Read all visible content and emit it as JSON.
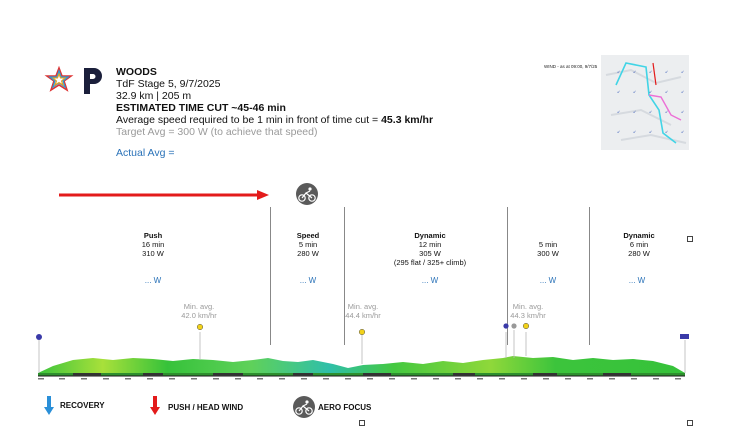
{
  "header": {
    "team": "WOODS",
    "stage": "TdF Stage 5, 9/7/2025",
    "distance_elev": "32.9 km | 205 m",
    "time_cut_label": "ESTIMATED TIME CUT ~45-46 min",
    "avg_speed_prefix": "Average speed required to be 1 min in front of time cut = ",
    "avg_speed_value": "45.3 km/hr",
    "target": "Target Avg = 300 W (to achieve that speed)",
    "actual": "Actual Avg ="
  },
  "wind_map": {
    "label": "WIND - as at 09:00, 9/7/25"
  },
  "segments": [
    {
      "title": "Push",
      "duration": "16 min",
      "power": "310 W",
      "note": "",
      "actual": "... W"
    },
    {
      "title": "Speed",
      "duration": "5 min",
      "power": "280 W",
      "note": "",
      "actual": "... W"
    },
    {
      "title": "Dynamic",
      "duration": "12 min",
      "power": "305 W",
      "note": "(295 flat / 325+ climb)",
      "actual": "... W"
    },
    {
      "title": "",
      "duration": "5 min",
      "power": "300 W",
      "note": "",
      "actual": "... W"
    },
    {
      "title": "Dynamic",
      "duration": "6 min",
      "power": "280 W",
      "note": "",
      "actual": "... W"
    }
  ],
  "min_avgs": [
    {
      "label": "Min. avg.",
      "value": "42.0 km/hr"
    },
    {
      "label": "Min. avg.",
      "value": "44.4 km/hr"
    },
    {
      "label": "Min. avg.",
      "value": "44.3 km/hr"
    }
  ],
  "legend": {
    "recovery": "RECOVERY",
    "push": "PUSH / HEAD WIND",
    "aero": "AERO FOCUS"
  },
  "colors": {
    "red_arrow": "#e31b1b",
    "blue_arrow": "#2a8fd8",
    "profile_green": "#3cc43c",
    "link_blue": "#2a72b8"
  }
}
